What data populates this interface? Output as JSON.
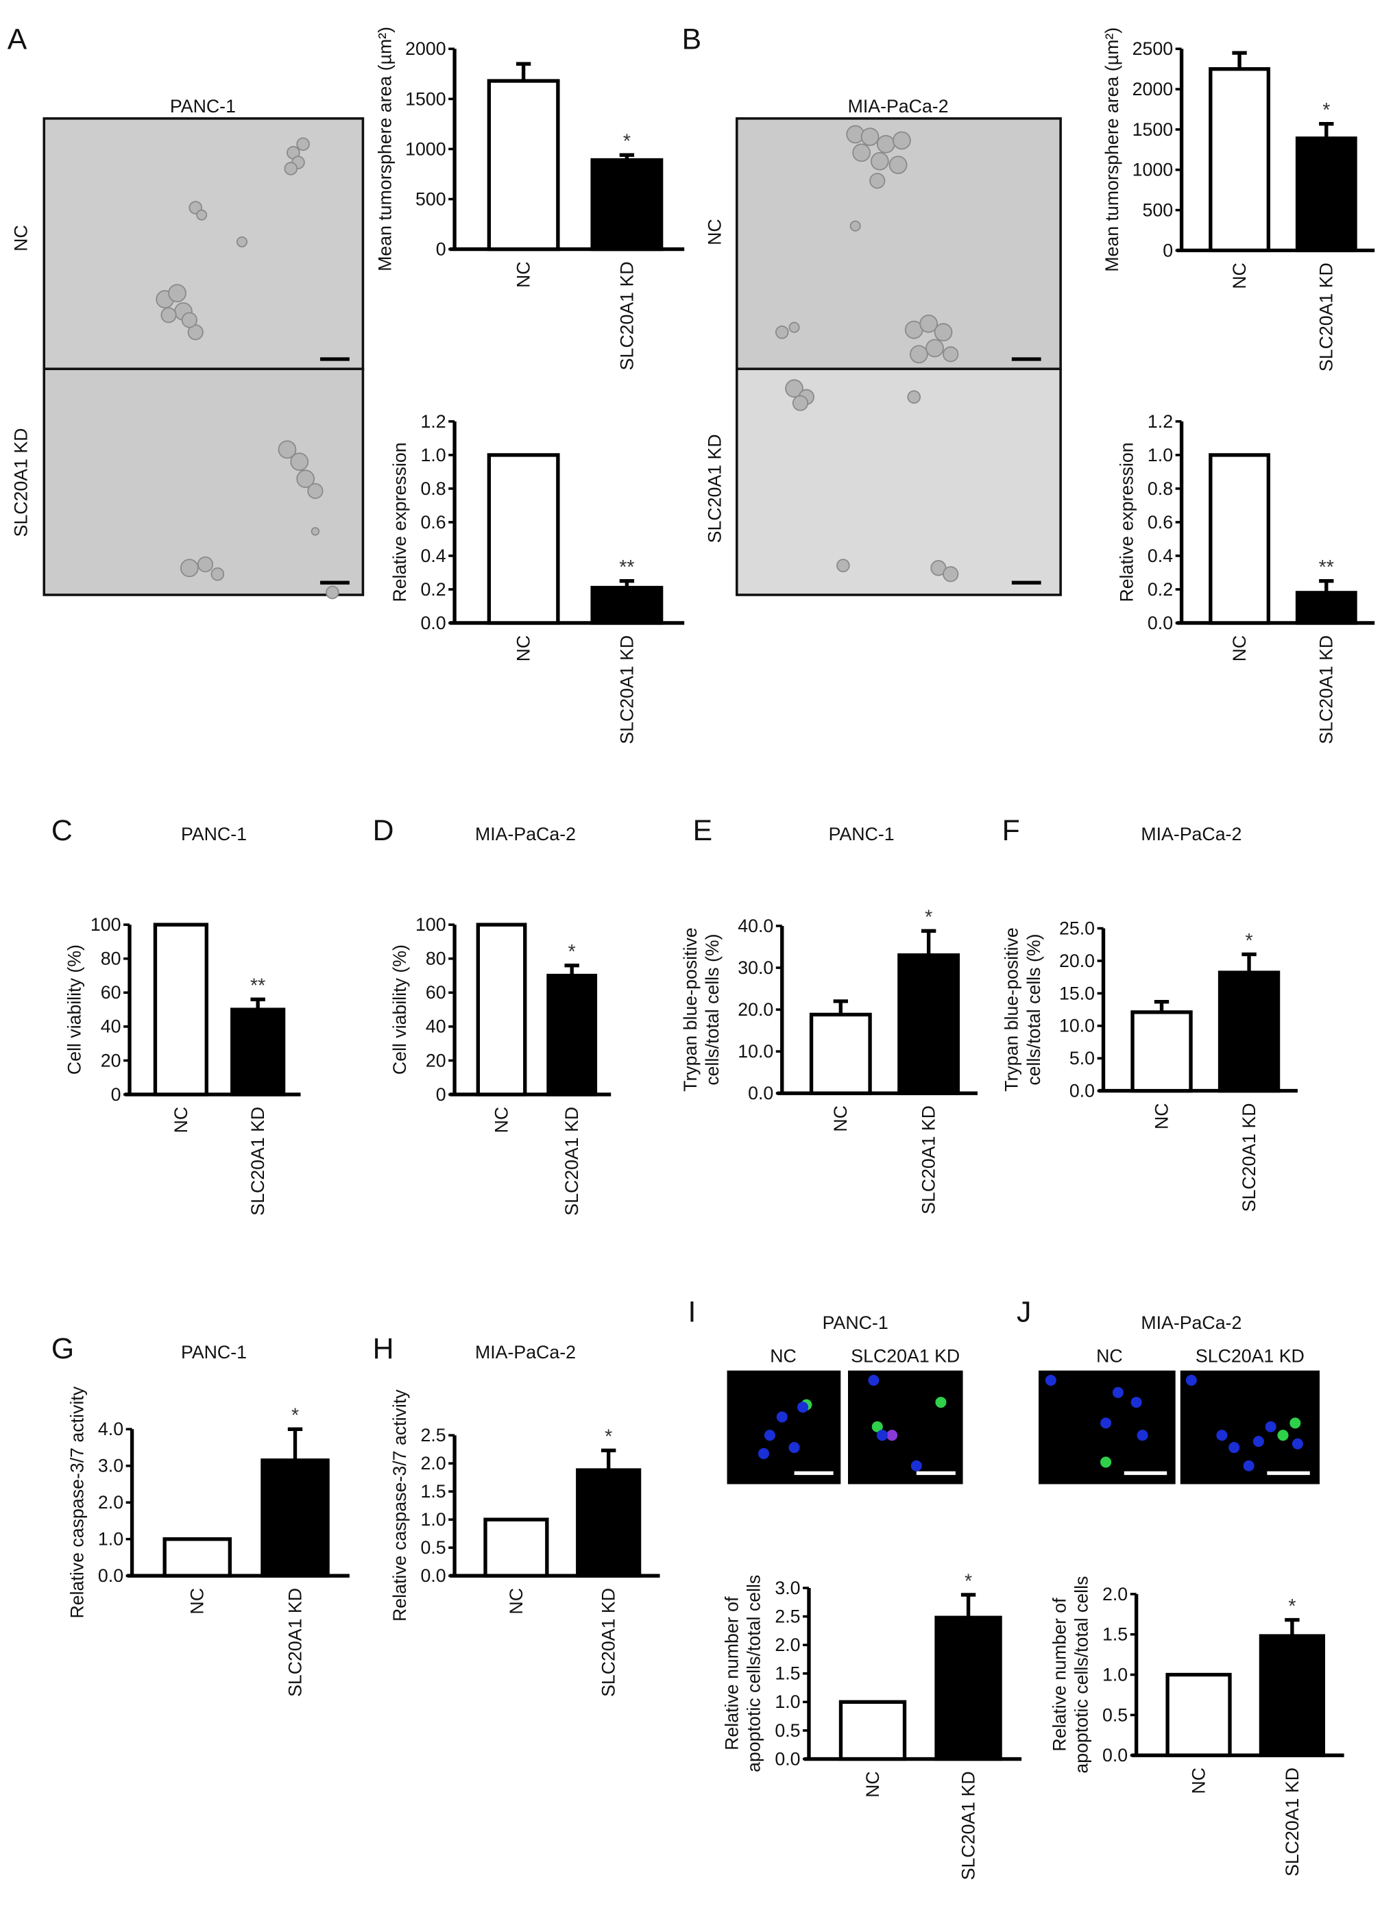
{
  "panels": {
    "A": {
      "letter": "A",
      "cell_line": "PANC-1",
      "row_labels": [
        "NC",
        "SLC20A1 KD"
      ]
    },
    "B": {
      "letter": "B",
      "cell_line": "MIA-PaCa-2",
      "row_labels": [
        "NC",
        "SLC20A1 KD"
      ]
    },
    "I": {
      "letter": "I",
      "cell_line": "PANC-1",
      "col_labels": [
        "NC",
        "SLC20A1 KD"
      ]
    },
    "J": {
      "letter": "J",
      "cell_line": "MIA-PaCa-2",
      "col_labels": [
        "NC",
        "SLC20A1 KD"
      ]
    }
  },
  "colors": {
    "nc_bar": "#ffffff",
    "kd_bar": "#000000",
    "micrograph_bg": "#cfcfcf",
    "nuclei": "#1a2fd6",
    "apoptotic": "#2fd04a"
  },
  "chart_data": [
    {
      "panel": "A",
      "letter": "",
      "title": "",
      "type": "bar",
      "ylabel": [
        "Mean tumorsphere area (µm²)"
      ],
      "categories": [
        "NC",
        "SLC20A1 KD"
      ],
      "values": [
        1680,
        890
      ],
      "errors": [
        170,
        50
      ],
      "significance": [
        "",
        "*"
      ],
      "ylim": [
        0,
        2000
      ],
      "yticks": [
        0,
        500,
        1000,
        1500,
        2000
      ],
      "ytick_labels": [
        "0",
        "500",
        "1000",
        "1500",
        "2000"
      ]
    },
    {
      "panel": "A",
      "letter": "",
      "title": "",
      "type": "bar",
      "ylabel": [
        "Relative expression"
      ],
      "categories": [
        "NC",
        "SLC20A1 KD"
      ],
      "values": [
        1.0,
        0.21
      ],
      "errors": [
        0,
        0.04
      ],
      "significance": [
        "",
        "**"
      ],
      "ylim": [
        0,
        1.2
      ],
      "yticks": [
        0,
        0.2,
        0.4,
        0.6,
        0.8,
        1.0,
        1.2
      ],
      "ytick_labels": [
        "0.0",
        "0.2",
        "0.4",
        "0.6",
        "0.8",
        "1.0",
        "1.2"
      ]
    },
    {
      "panel": "B",
      "letter": "",
      "title": "",
      "type": "bar",
      "ylabel": [
        "Mean tumorsphere area (µm²)"
      ],
      "categories": [
        "NC",
        "SLC20A1 KD"
      ],
      "values": [
        2250,
        1390
      ],
      "errors": [
        200,
        180
      ],
      "significance": [
        "",
        "*"
      ],
      "ylim": [
        0,
        2500
      ],
      "yticks": [
        0,
        500,
        1000,
        1500,
        2000,
        2500
      ],
      "ytick_labels": [
        "0",
        "500",
        "1000",
        "1500",
        "2000",
        "2500"
      ]
    },
    {
      "panel": "B",
      "letter": "",
      "title": "",
      "type": "bar",
      "ylabel": [
        "Relative expression"
      ],
      "categories": [
        "NC",
        "SLC20A1 KD"
      ],
      "values": [
        1.0,
        0.18
      ],
      "errors": [
        0,
        0.07
      ],
      "significance": [
        "",
        "**"
      ],
      "ylim": [
        0,
        1.2
      ],
      "yticks": [
        0,
        0.2,
        0.4,
        0.6,
        0.8,
        1.0,
        1.2
      ],
      "ytick_labels": [
        "0.0",
        "0.2",
        "0.4",
        "0.6",
        "0.8",
        "1.0",
        "1.2"
      ]
    },
    {
      "panel": "C",
      "letter": "C",
      "title": "PANC-1",
      "type": "bar",
      "ylabel": [
        "Cell viability (%)"
      ],
      "categories": [
        "NC",
        "SLC20A1 KD"
      ],
      "values": [
        100,
        50
      ],
      "errors": [
        0,
        6
      ],
      "significance": [
        "",
        "**"
      ],
      "ylim": [
        0,
        100
      ],
      "yticks": [
        0,
        20,
        40,
        60,
        80,
        100
      ],
      "ytick_labels": [
        "0",
        "20",
        "40",
        "60",
        "80",
        "100"
      ]
    },
    {
      "panel": "D",
      "letter": "D",
      "title": "MIA-PaCa-2",
      "type": "bar",
      "ylabel": [
        "Cell viability (%)"
      ],
      "categories": [
        "NC",
        "SLC20A1 KD"
      ],
      "values": [
        100,
        70
      ],
      "errors": [
        0,
        6
      ],
      "significance": [
        "",
        "*"
      ],
      "ylim": [
        0,
        100
      ],
      "yticks": [
        0,
        20,
        40,
        60,
        80,
        100
      ],
      "ytick_labels": [
        "0",
        "20",
        "40",
        "60",
        "80",
        "100"
      ]
    },
    {
      "panel": "E",
      "letter": "E",
      "title": "PANC-1",
      "type": "bar",
      "ylabel": [
        "Trypan blue-positive",
        "cells/total cells (%)"
      ],
      "categories": [
        "NC",
        "SLC20A1 KD"
      ],
      "values": [
        18.8,
        33.0
      ],
      "errors": [
        3.2,
        5.8
      ],
      "significance": [
        "",
        "*"
      ],
      "ylim": [
        0,
        40
      ],
      "yticks": [
        0,
        10,
        20,
        30,
        40
      ],
      "ytick_labels": [
        "0.0",
        "10.0",
        "20.0",
        "30.0",
        "40.0"
      ]
    },
    {
      "panel": "F",
      "letter": "F",
      "title": "MIA-PaCa-2",
      "type": "bar",
      "ylabel": [
        "Trypan blue-positive",
        "cells/total cells (%)"
      ],
      "categories": [
        "NC",
        "SLC20A1 KD"
      ],
      "values": [
        12.1,
        18.2
      ],
      "errors": [
        1.6,
        2.8
      ],
      "significance": [
        "",
        "*"
      ],
      "ylim": [
        0,
        25
      ],
      "yticks": [
        0,
        5,
        10,
        15,
        20,
        25
      ],
      "ytick_labels": [
        "0.0",
        "5.0",
        "10.0",
        "15.0",
        "20.0",
        "25.0"
      ]
    },
    {
      "panel": "G",
      "letter": "G",
      "title": "PANC-1",
      "type": "bar",
      "ylabel": [
        "Relative caspase-3/7 activity"
      ],
      "categories": [
        "NC",
        "SLC20A1 KD"
      ],
      "values": [
        1.0,
        3.15
      ],
      "errors": [
        0,
        0.85
      ],
      "significance": [
        "",
        "*"
      ],
      "ylim": [
        0,
        4
      ],
      "yticks": [
        0,
        1,
        2,
        3,
        4
      ],
      "ytick_labels": [
        "0.0",
        "1.0",
        "2.0",
        "3.0",
        "4.0"
      ]
    },
    {
      "panel": "H",
      "letter": "H",
      "title": "MIA-PaCa-2",
      "type": "bar",
      "ylabel": [
        "Relative caspase-3/7 activity"
      ],
      "categories": [
        "NC",
        "SLC20A1 KD"
      ],
      "values": [
        1.0,
        1.88
      ],
      "errors": [
        0,
        0.35
      ],
      "significance": [
        "",
        "*"
      ],
      "ylim": [
        0,
        2.5
      ],
      "yticks": [
        0,
        0.5,
        1.0,
        1.5,
        2.0,
        2.5
      ],
      "ytick_labels": [
        "0.0",
        "0.5",
        "1.0",
        "1.5",
        "2.0",
        "2.5"
      ]
    },
    {
      "panel": "I",
      "letter": "",
      "title": "",
      "type": "bar",
      "ylabel": [
        "Relative number of",
        "apoptotic cells/total cells"
      ],
      "categories": [
        "NC",
        "SLC20A1 KD"
      ],
      "values": [
        1.0,
        2.48
      ],
      "errors": [
        0,
        0.4
      ],
      "significance": [
        "",
        "*"
      ],
      "ylim": [
        0,
        3
      ],
      "yticks": [
        0,
        0.5,
        1.0,
        1.5,
        2.0,
        2.5,
        3.0
      ],
      "ytick_labels": [
        "0.0",
        "0.5",
        "1.0",
        "1.5",
        "2.0",
        "2.5",
        "3.0"
      ]
    },
    {
      "panel": "J",
      "letter": "",
      "title": "",
      "type": "bar",
      "ylabel": [
        "Relative number of",
        "apoptotic cells/total cells"
      ],
      "categories": [
        "NC",
        "SLC20A1 KD"
      ],
      "values": [
        1.0,
        1.48
      ],
      "errors": [
        0,
        0.2
      ],
      "significance": [
        "",
        "*"
      ],
      "ylim": [
        0,
        2
      ],
      "yticks": [
        0,
        0.5,
        1.0,
        1.5,
        2.0
      ],
      "ytick_labels": [
        "0.0",
        "0.5",
        "1.0",
        "1.5",
        "2.0"
      ]
    }
  ]
}
